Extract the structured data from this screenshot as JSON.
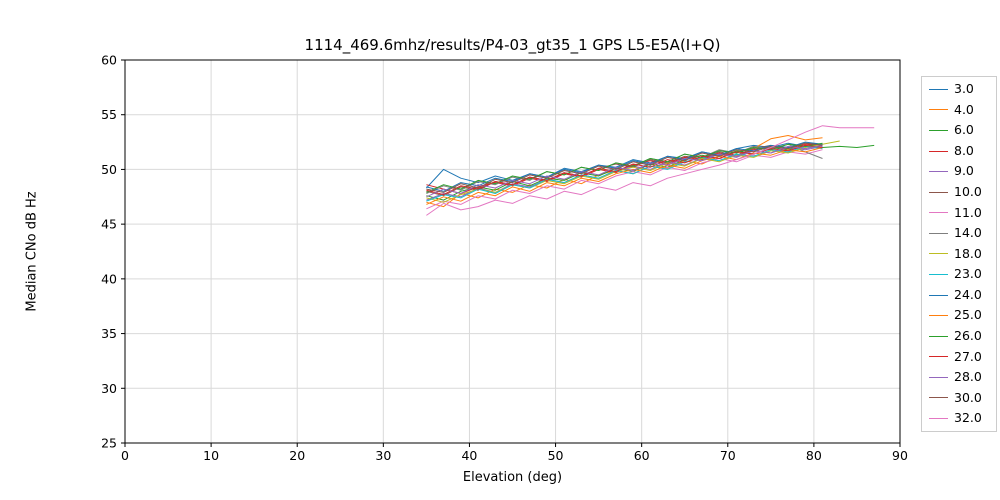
{
  "chart_data": {
    "type": "line",
    "title": "1114_469.6mhz/results/P4-03_gt35_1 GPS L5-E5A(I+Q)",
    "xlabel": "Elevation (deg)",
    "ylabel": "Median CNo dB Hz",
    "xlim": [
      0,
      90
    ],
    "ylim": [
      25,
      60
    ],
    "xticks": [
      0,
      10,
      20,
      30,
      40,
      50,
      60,
      70,
      80,
      90
    ],
    "yticks": [
      25,
      30,
      35,
      40,
      45,
      50,
      55,
      60
    ],
    "grid": true,
    "grid_color": "#d9d9d9",
    "legend_position": "right-outside",
    "series": [
      {
        "name": "3.0",
        "color": "#1f77b4",
        "x": [
          35,
          37,
          39,
          41,
          43,
          45,
          47,
          49,
          51,
          53,
          55,
          57,
          59,
          61,
          63,
          65,
          67,
          69,
          71,
          73,
          75,
          77,
          79,
          81
        ],
        "y": [
          48.3,
          50.0,
          49.2,
          48.8,
          49.4,
          49.0,
          49.6,
          49.3,
          50.1,
          49.8,
          50.4,
          50.2,
          50.9,
          50.6,
          51.2,
          51.0,
          51.6,
          51.3,
          51.9,
          52.2,
          52.0,
          52.4,
          52.1,
          52.3
        ]
      },
      {
        "name": "4.0",
        "color": "#ff7f0e",
        "x": [
          35,
          37,
          39,
          41,
          43,
          45,
          47,
          49,
          51,
          53,
          55,
          57,
          59,
          61,
          63,
          65,
          67,
          69,
          71,
          73,
          75,
          77,
          79,
          81
        ],
        "y": [
          47.0,
          46.6,
          47.8,
          47.4,
          48.2,
          47.9,
          48.6,
          48.3,
          49.1,
          48.7,
          49.5,
          49.9,
          49.6,
          50.3,
          50.1,
          50.8,
          50.5,
          51.2,
          51.6,
          51.9,
          52.8,
          53.1,
          52.7,
          52.9
        ]
      },
      {
        "name": "6.0",
        "color": "#2ca02c",
        "x": [
          35,
          37,
          39,
          41,
          43,
          45,
          47,
          49,
          51,
          53,
          55,
          57,
          59,
          61,
          63,
          65,
          67,
          69,
          71,
          73,
          75,
          77,
          79,
          81,
          83,
          85,
          87
        ],
        "y": [
          47.6,
          47.2,
          48.0,
          48.4,
          48.1,
          48.9,
          48.5,
          49.2,
          49.0,
          49.7,
          49.4,
          50.1,
          49.8,
          50.5,
          50.2,
          50.9,
          51.3,
          51.0,
          51.7,
          51.4,
          52.0,
          51.8,
          52.2,
          52.0,
          52.1,
          52.0,
          52.2
        ]
      },
      {
        "name": "8.0",
        "color": "#d62728",
        "x": [
          35,
          37,
          39,
          41,
          43,
          45,
          47,
          49,
          51,
          53,
          55,
          57,
          59,
          61,
          63,
          65,
          67,
          69,
          71,
          73,
          75,
          77,
          79,
          81
        ],
        "y": [
          48.6,
          48.2,
          47.8,
          48.4,
          48.8,
          48.5,
          49.2,
          48.9,
          49.6,
          49.3,
          50.0,
          49.7,
          50.4,
          50.8,
          50.5,
          51.1,
          50.9,
          51.5,
          51.2,
          51.8,
          52.1,
          51.9,
          52.3,
          52.2
        ]
      },
      {
        "name": "9.0",
        "color": "#9467bd",
        "x": [
          35,
          37,
          39,
          41,
          43,
          45,
          47,
          49,
          51,
          53,
          55,
          57,
          59,
          61,
          63,
          65,
          67,
          69,
          71,
          73,
          75,
          77,
          79,
          81
        ],
        "y": [
          47.2,
          47.8,
          47.5,
          48.3,
          47.9,
          48.7,
          48.4,
          49.1,
          48.8,
          49.5,
          49.2,
          49.9,
          50.3,
          50.0,
          50.7,
          50.4,
          51.0,
          51.4,
          51.1,
          51.7,
          51.5,
          52.0,
          51.8,
          52.1
        ]
      },
      {
        "name": "10.0",
        "color": "#8c564b",
        "x": [
          35,
          37,
          39,
          41,
          43,
          45,
          47,
          49,
          51,
          53,
          55,
          57,
          59,
          61,
          63,
          65,
          67,
          69,
          71,
          73,
          75,
          77,
          79,
          81
        ],
        "y": [
          48.0,
          47.6,
          48.4,
          48.1,
          48.9,
          48.6,
          49.3,
          49.0,
          49.7,
          49.4,
          50.1,
          50.5,
          50.2,
          50.9,
          50.6,
          51.2,
          51.0,
          51.6,
          51.3,
          51.9,
          52.2,
          52.0,
          52.4,
          52.3
        ]
      },
      {
        "name": "11.0",
        "color": "#e377c2",
        "x": [
          35,
          37,
          39,
          41,
          43,
          45,
          47,
          49,
          51,
          53,
          55,
          57,
          59,
          61,
          63,
          65,
          67,
          69,
          71,
          73,
          75,
          77,
          79,
          81
        ],
        "y": [
          46.4,
          47.1,
          46.8,
          47.6,
          47.3,
          48.1,
          47.8,
          48.5,
          48.2,
          49.0,
          48.7,
          49.4,
          49.8,
          49.5,
          50.2,
          49.9,
          50.6,
          51.0,
          50.7,
          51.3,
          51.1,
          51.6,
          51.4,
          51.8
        ]
      },
      {
        "name": "14.0",
        "color": "#7f7f7f",
        "x": [
          35,
          37,
          39,
          41,
          43,
          45,
          47,
          49,
          51,
          53,
          55,
          57,
          59,
          61,
          63,
          65,
          67,
          69,
          71,
          73,
          75,
          77,
          79,
          81
        ],
        "y": [
          47.8,
          48.5,
          48.1,
          48.9,
          48.6,
          49.3,
          49.0,
          49.8,
          49.5,
          50.2,
          49.9,
          50.6,
          50.3,
          51.0,
          50.7,
          51.4,
          51.1,
          51.8,
          51.5,
          52.1,
          51.9,
          52.3,
          51.6,
          51.0
        ]
      },
      {
        "name": "18.0",
        "color": "#bcbd22",
        "x": [
          35,
          37,
          39,
          41,
          43,
          45,
          47,
          49,
          51,
          53,
          55,
          57,
          59,
          61,
          63,
          65,
          67,
          69,
          71,
          73,
          75,
          77,
          79,
          81,
          83
        ],
        "y": [
          47.4,
          47.0,
          47.7,
          48.2,
          47.9,
          48.6,
          48.3,
          49.0,
          48.7,
          49.4,
          49.1,
          49.8,
          50.2,
          49.9,
          50.6,
          50.3,
          51.0,
          50.7,
          51.3,
          51.1,
          51.7,
          51.5,
          52.0,
          52.3,
          52.6
        ]
      },
      {
        "name": "23.0",
        "color": "#17becf",
        "x": [
          35,
          37,
          39,
          41,
          43,
          45,
          47,
          49,
          51,
          53,
          55,
          57,
          59,
          61,
          63,
          65,
          67,
          69,
          71,
          73,
          75,
          77,
          79,
          81
        ],
        "y": [
          47.1,
          47.7,
          47.4,
          48.2,
          47.8,
          48.6,
          48.3,
          49.1,
          48.8,
          49.5,
          49.2,
          49.9,
          49.6,
          50.3,
          50.0,
          50.7,
          51.1,
          50.8,
          51.4,
          51.2,
          51.8,
          51.6,
          52.1,
          51.9
        ]
      },
      {
        "name": "24.0",
        "color": "#1f77b4",
        "x": [
          35,
          37,
          39,
          41,
          43,
          45,
          47,
          49,
          51,
          53,
          55,
          57,
          59,
          61,
          63,
          65,
          67,
          69,
          71,
          73,
          75,
          77,
          79,
          81
        ],
        "y": [
          48.4,
          48.0,
          48.8,
          48.5,
          49.2,
          48.9,
          49.6,
          49.3,
          50.0,
          49.7,
          50.4,
          50.1,
          50.8,
          50.5,
          51.2,
          50.9,
          51.6,
          51.3,
          51.9,
          51.7,
          52.2,
          52.0,
          52.5,
          52.3
        ]
      },
      {
        "name": "25.0",
        "color": "#ff7f0e",
        "x": [
          35,
          37,
          39,
          41,
          43,
          45,
          47,
          49,
          51,
          53,
          55,
          57,
          59,
          61,
          63,
          65,
          67,
          69,
          71,
          73,
          75,
          77,
          79,
          81
        ],
        "y": [
          46.8,
          47.5,
          47.1,
          47.9,
          47.6,
          48.4,
          48.0,
          48.8,
          48.5,
          49.2,
          48.9,
          49.6,
          50.0,
          49.7,
          50.4,
          50.1,
          50.8,
          51.2,
          50.9,
          51.5,
          51.3,
          51.8,
          51.6,
          52.0
        ]
      },
      {
        "name": "26.0",
        "color": "#2ca02c",
        "x": [
          35,
          37,
          39,
          41,
          43,
          45,
          47,
          49,
          51,
          53,
          55,
          57,
          59,
          61,
          63,
          65,
          67,
          69,
          71,
          73,
          75,
          77,
          79,
          81
        ],
        "y": [
          47.9,
          48.6,
          48.2,
          49.0,
          48.7,
          49.4,
          49.1,
          49.8,
          49.5,
          50.2,
          49.9,
          50.6,
          50.3,
          51.0,
          50.7,
          51.4,
          51.1,
          51.7,
          51.5,
          52.0,
          51.8,
          52.3,
          52.1,
          52.4
        ]
      },
      {
        "name": "27.0",
        "color": "#d62728",
        "x": [
          35,
          37,
          39,
          41,
          43,
          45,
          47,
          49,
          51,
          53,
          55,
          57,
          59,
          61,
          63,
          65,
          67,
          69,
          71,
          73,
          75,
          77,
          79,
          81
        ],
        "y": [
          48.1,
          47.7,
          48.5,
          48.2,
          48.9,
          48.6,
          49.3,
          49.0,
          49.7,
          49.4,
          50.1,
          49.8,
          50.5,
          50.2,
          50.9,
          50.6,
          51.2,
          51.0,
          51.6,
          51.4,
          51.9,
          51.7,
          52.2,
          52.0
        ]
      },
      {
        "name": "28.0",
        "color": "#9467bd",
        "x": [
          35,
          37,
          39,
          41,
          43,
          45,
          47,
          49,
          51,
          53,
          55,
          57,
          59,
          61,
          63,
          65,
          67,
          69,
          71,
          73,
          75,
          77,
          79,
          81
        ],
        "y": [
          47.5,
          48.2,
          47.8,
          48.6,
          48.3,
          49.0,
          48.7,
          49.4,
          49.1,
          49.8,
          49.5,
          50.2,
          49.9,
          50.6,
          50.4,
          51.0,
          50.8,
          51.4,
          51.2,
          51.7,
          51.5,
          52.1,
          51.9,
          52.2
        ]
      },
      {
        "name": "30.0",
        "color": "#8c564b",
        "x": [
          35,
          37,
          39,
          41,
          43,
          45,
          47,
          49,
          51,
          53,
          55,
          57,
          59,
          61,
          63,
          65,
          67,
          69,
          71,
          73,
          75,
          77,
          79,
          81
        ],
        "y": [
          48.2,
          47.9,
          48.7,
          48.3,
          49.1,
          48.8,
          49.5,
          49.2,
          49.9,
          49.6,
          50.3,
          50.0,
          50.7,
          50.4,
          51.1,
          50.8,
          51.5,
          51.2,
          51.8,
          51.6,
          52.1,
          51.9,
          52.4,
          52.2
        ]
      },
      {
        "name": "32.0",
        "color": "#e377c2",
        "x": [
          35,
          37,
          39,
          41,
          43,
          45,
          47,
          49,
          51,
          53,
          55,
          57,
          59,
          61,
          63,
          65,
          67,
          69,
          71,
          73,
          75,
          77,
          79,
          81,
          83,
          85,
          87
        ],
        "y": [
          45.8,
          46.9,
          46.3,
          46.6,
          47.2,
          46.9,
          47.6,
          47.3,
          48.0,
          47.7,
          48.4,
          48.1,
          48.8,
          48.5,
          49.2,
          49.6,
          50.0,
          50.4,
          50.9,
          51.4,
          52.0,
          52.7,
          53.4,
          54.0,
          53.8,
          53.8,
          53.8
        ]
      }
    ]
  }
}
